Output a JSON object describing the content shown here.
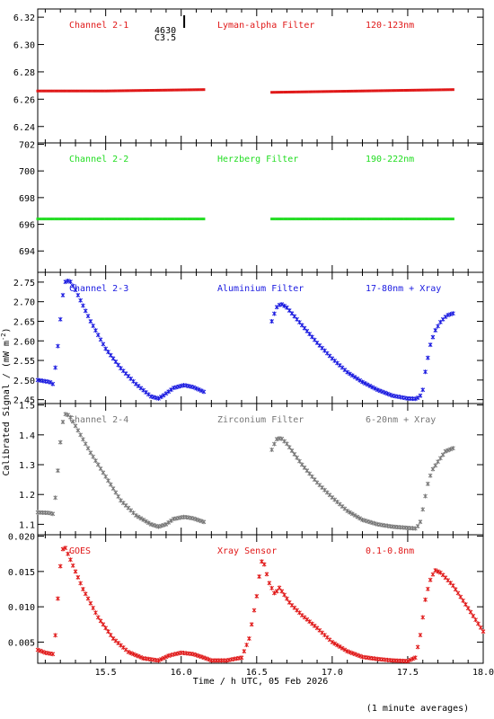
{
  "chart_data": {
    "type": "scatter",
    "xlabel": "Time / h UTC, 05 Feb 2026",
    "ylabel": "Calibrated Signal / (mW m",
    "ylabel_sup": "-2",
    "ylabel_end": ")",
    "footnote": "(1 minute averages)",
    "xlim": [
      15.05,
      18.0
    ],
    "xticks": [
      15.5,
      16.0,
      16.5,
      17.0,
      17.5,
      18.0
    ],
    "xtick_labels": [
      "15.5",
      "16.0",
      "16.5",
      "17.0",
      "17.5",
      "18.0"
    ],
    "flare_marker": {
      "x": 16.02,
      "label_top": "4630",
      "label_bottom": "C3.5"
    },
    "panels": [
      {
        "name": "Channel 2-1",
        "filter": "Lyman-alpha Filter",
        "band": "120-123nm",
        "color": "#e01818",
        "ylim": [
          6.228,
          6.326
        ],
        "yticks": [
          6.24,
          6.26,
          6.28,
          6.3,
          6.32
        ],
        "ytick_labels": [
          "6.24",
          "6.26",
          "6.28",
          "6.30",
          "6.32"
        ],
        "segments": [
          {
            "knots": [
              [
                15.05,
                6.266
              ],
              [
                15.5,
                6.266
              ],
              [
                16.15,
                6.267
              ]
            ]
          },
          {
            "knots": [
              [
                16.6,
                6.265
              ],
              [
                17.2,
                6.266
              ],
              [
                17.8,
                6.267
              ]
            ]
          }
        ]
      },
      {
        "name": "Channel 2-2",
        "filter": "Herzberg Filter",
        "band": "190-222nm",
        "color": "#22dd22",
        "ylim": [
          692.4,
          702.1
        ],
        "yticks": [
          694,
          696,
          698,
          700,
          702
        ],
        "ytick_labels": [
          "694",
          "696",
          "698",
          "700",
          "702"
        ],
        "segments": [
          {
            "knots": [
              [
                15.05,
                696.4
              ],
              [
                16.15,
                696.4
              ]
            ]
          },
          {
            "knots": [
              [
                16.6,
                696.4
              ],
              [
                17.8,
                696.4
              ]
            ]
          }
        ]
      },
      {
        "name": "Channel 2-3",
        "filter": "Aluminium Filter",
        "band": "17-80nm + Xray",
        "color": "#1a1ae0",
        "ylim": [
          2.44,
          2.775
        ],
        "yticks": [
          2.45,
          2.5,
          2.55,
          2.6,
          2.65,
          2.7,
          2.75
        ],
        "ytick_labels": [
          "2.45",
          "2.50",
          "2.55",
          "2.60",
          "2.65",
          "2.70",
          "2.75"
        ],
        "segments": [
          {
            "knots": [
              [
                15.05,
                2.5
              ],
              [
                15.13,
                2.495
              ],
              [
                15.15,
                2.49
              ],
              [
                15.17,
                2.54
              ],
              [
                15.19,
                2.61
              ],
              [
                15.21,
                2.7
              ],
              [
                15.23,
                2.75
              ],
              [
                15.26,
                2.755
              ],
              [
                15.3,
                2.73
              ],
              [
                15.4,
                2.65
              ],
              [
                15.5,
                2.58
              ],
              [
                15.6,
                2.53
              ],
              [
                15.7,
                2.49
              ],
              [
                15.8,
                2.458
              ],
              [
                15.85,
                2.453
              ],
              [
                15.88,
                2.46
              ],
              [
                15.95,
                2.48
              ],
              [
                16.02,
                2.487
              ],
              [
                16.08,
                2.482
              ],
              [
                16.15,
                2.47
              ]
            ]
          },
          {
            "knots": [
              [
                16.6,
                2.65
              ],
              [
                16.63,
                2.685
              ],
              [
                16.66,
                2.695
              ],
              [
                16.7,
                2.685
              ],
              [
                16.8,
                2.64
              ],
              [
                16.9,
                2.595
              ],
              [
                17.0,
                2.555
              ],
              [
                17.1,
                2.52
              ],
              [
                17.2,
                2.495
              ],
              [
                17.3,
                2.475
              ],
              [
                17.4,
                2.46
              ],
              [
                17.5,
                2.453
              ],
              [
                17.55,
                2.452
              ],
              [
                17.58,
                2.457
              ],
              [
                17.6,
                2.475
              ],
              [
                17.62,
                2.53
              ],
              [
                17.65,
                2.59
              ],
              [
                17.68,
                2.625
              ],
              [
                17.72,
                2.65
              ],
              [
                17.76,
                2.665
              ],
              [
                17.8,
                2.67
              ]
            ]
          }
        ]
      },
      {
        "name": "Channel 2-4",
        "filter": "Zirconium Filter",
        "band": "6-20nm + Xray",
        "color": "#777777",
        "ylim": [
          1.065,
          1.505
        ],
        "yticks": [
          1.1,
          1.2,
          1.3,
          1.4,
          1.5
        ],
        "ytick_labels": [
          "1.1",
          "1.2",
          "1.3",
          "1.4",
          "1.5"
        ],
        "segments": [
          {
            "knots": [
              [
                15.05,
                1.14
              ],
              [
                15.13,
                1.138
              ],
              [
                15.15,
                1.135
              ],
              [
                15.17,
                1.2
              ],
              [
                15.19,
                1.32
              ],
              [
                15.21,
                1.43
              ],
              [
                15.23,
                1.47
              ],
              [
                15.26,
                1.465
              ],
              [
                15.3,
                1.43
              ],
              [
                15.4,
                1.34
              ],
              [
                15.5,
                1.26
              ],
              [
                15.6,
                1.18
              ],
              [
                15.7,
                1.13
              ],
              [
                15.8,
                1.1
              ],
              [
                15.85,
                1.092
              ],
              [
                15.9,
                1.1
              ],
              [
                15.95,
                1.118
              ],
              [
                16.02,
                1.125
              ],
              [
                16.08,
                1.12
              ],
              [
                16.15,
                1.108
              ]
            ]
          },
          {
            "knots": [
              [
                16.6,
                1.35
              ],
              [
                16.63,
                1.385
              ],
              [
                16.66,
                1.39
              ],
              [
                16.7,
                1.37
              ],
              [
                16.8,
                1.3
              ],
              [
                16.9,
                1.24
              ],
              [
                17.0,
                1.19
              ],
              [
                17.1,
                1.145
              ],
              [
                17.2,
                1.115
              ],
              [
                17.3,
                1.1
              ],
              [
                17.4,
                1.092
              ],
              [
                17.5,
                1.088
              ],
              [
                17.55,
                1.086
              ],
              [
                17.58,
                1.1
              ],
              [
                17.6,
                1.15
              ],
              [
                17.63,
                1.23
              ],
              [
                17.66,
                1.28
              ],
              [
                17.7,
                1.31
              ],
              [
                17.75,
                1.345
              ],
              [
                17.8,
                1.355
              ]
            ]
          }
        ]
      },
      {
        "name": "GOES",
        "filter": "Xray Sensor",
        "band": "0.1-0.8nm",
        "color": "#e01818",
        "ylim": [
          0.002,
          0.0202
        ],
        "yticks": [
          0.005,
          0.01,
          0.015,
          0.02
        ],
        "ytick_labels": [
          "0.005",
          "0.010",
          "0.015",
          "0.020"
        ],
        "segments": [
          {
            "knots": [
              [
                15.05,
                0.0039
              ],
              [
                15.1,
                0.0035
              ],
              [
                15.15,
                0.0033
              ],
              [
                15.17,
                0.0065
              ],
              [
                15.19,
                0.0135
              ],
              [
                15.21,
                0.018
              ],
              [
                15.23,
                0.0185
              ],
              [
                15.27,
                0.0165
              ],
              [
                15.35,
                0.0125
              ],
              [
                15.45,
                0.0085
              ],
              [
                15.55,
                0.0055
              ],
              [
                15.65,
                0.0036
              ],
              [
                15.75,
                0.0027
              ],
              [
                15.85,
                0.0024
              ],
              [
                15.92,
                0.0031
              ],
              [
                16.0,
                0.0035
              ],
              [
                16.08,
                0.0033
              ],
              [
                16.15,
                0.0028
              ],
              [
                16.2,
                0.0024
              ],
              [
                16.3,
                0.0024
              ],
              [
                16.4,
                0.0028
              ],
              [
                16.45,
                0.0055
              ],
              [
                16.5,
                0.0115
              ],
              [
                16.53,
                0.0165
              ],
              [
                16.55,
                0.016
              ],
              [
                16.58,
                0.0135
              ],
              [
                16.62,
                0.0118
              ],
              [
                16.65,
                0.0127
              ],
              [
                16.68,
                0.0118
              ],
              [
                16.72,
                0.0105
              ],
              [
                16.8,
                0.0088
              ],
              [
                16.9,
                0.007
              ],
              [
                17.0,
                0.005
              ],
              [
                17.1,
                0.0037
              ],
              [
                17.2,
                0.0029
              ],
              [
                17.3,
                0.0026
              ],
              [
                17.4,
                0.0024
              ],
              [
                17.5,
                0.0023
              ],
              [
                17.55,
                0.0028
              ],
              [
                17.58,
                0.0055
              ],
              [
                17.62,
                0.0115
              ],
              [
                17.65,
                0.0138
              ],
              [
                17.68,
                0.0152
              ],
              [
                17.72,
                0.0148
              ],
              [
                17.8,
                0.013
              ],
              [
                17.9,
                0.0098
              ],
              [
                18.0,
                0.0065
              ]
            ]
          }
        ]
      }
    ]
  }
}
